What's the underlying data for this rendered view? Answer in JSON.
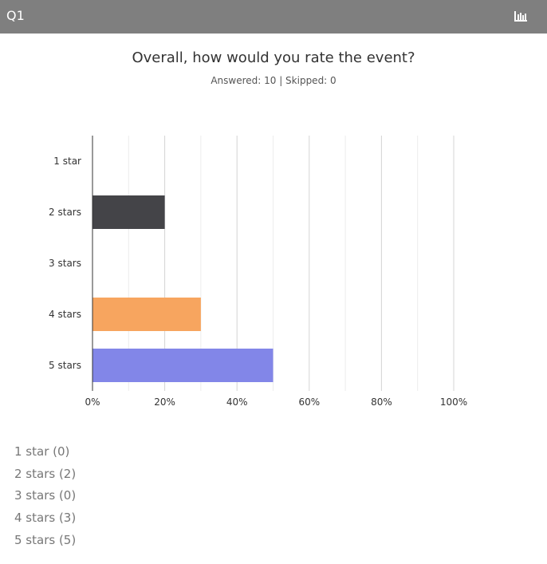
{
  "header": {
    "question_label": "Q1",
    "chart_icon": "bar-chart-icon",
    "background_color": "#7f7f7f"
  },
  "question": {
    "title": "Overall, how would you rate the event?",
    "stats": "Answered: 10 | Skipped: 0"
  },
  "chart_data": {
    "type": "bar",
    "orientation": "horizontal",
    "categories": [
      "1 star",
      "2 stars",
      "3 stars",
      "4 stars",
      "5 stars"
    ],
    "values": [
      0,
      20,
      0,
      30,
      50
    ],
    "colors": [
      "#6c8ebf",
      "#444448",
      "#9ec97f",
      "#f7a55f",
      "#8286e8"
    ],
    "xlim": [
      0,
      100
    ],
    "x_ticks": [
      "0%",
      "20%",
      "40%",
      "60%",
      "80%",
      "100%"
    ],
    "x_tick_values": [
      0,
      20,
      40,
      60,
      80,
      100
    ],
    "grid": true,
    "legend": "none"
  },
  "responses": [
    {
      "label": "1 star (0)"
    },
    {
      "label": "2 stars (2)"
    },
    {
      "label": "3 stars (0)"
    },
    {
      "label": "4 stars (3)"
    },
    {
      "label": "5 stars (5)"
    }
  ]
}
